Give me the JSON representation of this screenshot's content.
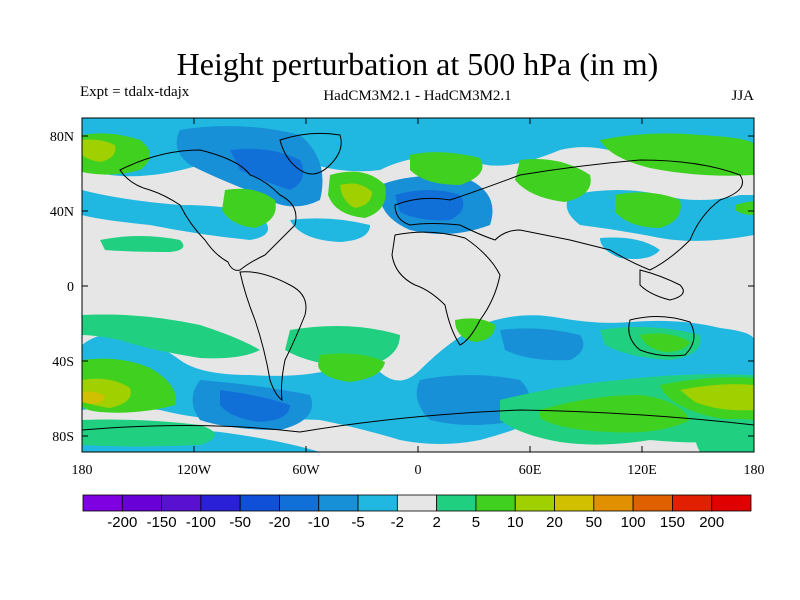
{
  "title": "Height perturbation at 500 hPa (in m)",
  "expt_label": "Expt = tdalx-tdajx",
  "model_label": "HadCM3M2.1 - HadCM3M2.1",
  "season_label": "JJA",
  "axes": {
    "lon_ticks": [
      "180",
      "120W",
      "60W",
      "0",
      "60E",
      "120E",
      "180"
    ],
    "lat_ticks": [
      "80N",
      "40N",
      "0",
      "40S",
      "80S"
    ]
  },
  "colorbar": {
    "labels": [
      "-200",
      "-150",
      "-100",
      "-50",
      "-20",
      "-10",
      "-5",
      "-2",
      "2",
      "5",
      "10",
      "20",
      "50",
      "100",
      "150",
      "200"
    ],
    "colors": [
      "#7f00e0",
      "#6a00d8",
      "#5a10d0",
      "#2a20d8",
      "#1050d8",
      "#1070d8",
      "#1890d8",
      "#20b8e0",
      "#e6e6e6",
      "#20d080",
      "#40d020",
      "#a0d000",
      "#d0c000",
      "#e09000",
      "#e06000",
      "#e02000",
      "#e00000"
    ]
  }
}
